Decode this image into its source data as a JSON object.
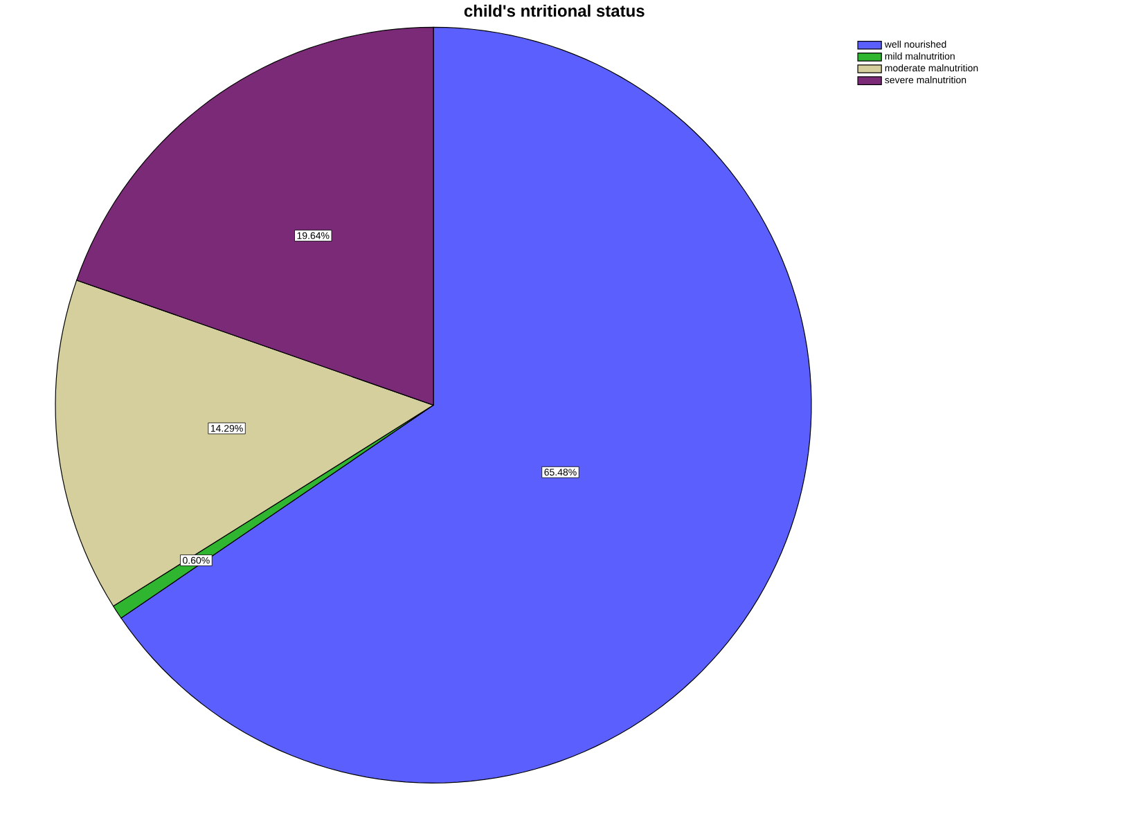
{
  "chart_data": {
    "type": "pie",
    "title": "child's ntritional status",
    "categories": [
      "well nourished",
      "mild malnutrition",
      "moderate malnutrition",
      "severe malnutrition"
    ],
    "values": [
      65.48,
      0.6,
      14.29,
      19.64
    ],
    "colors": [
      "#5b5ffd",
      "#2fb52f",
      "#d4cf9c",
      "#7b2a78"
    ],
    "value_labels": [
      "65.48%",
      "0.60%",
      "14.29%",
      "19.64%"
    ],
    "legend": "top right"
  }
}
